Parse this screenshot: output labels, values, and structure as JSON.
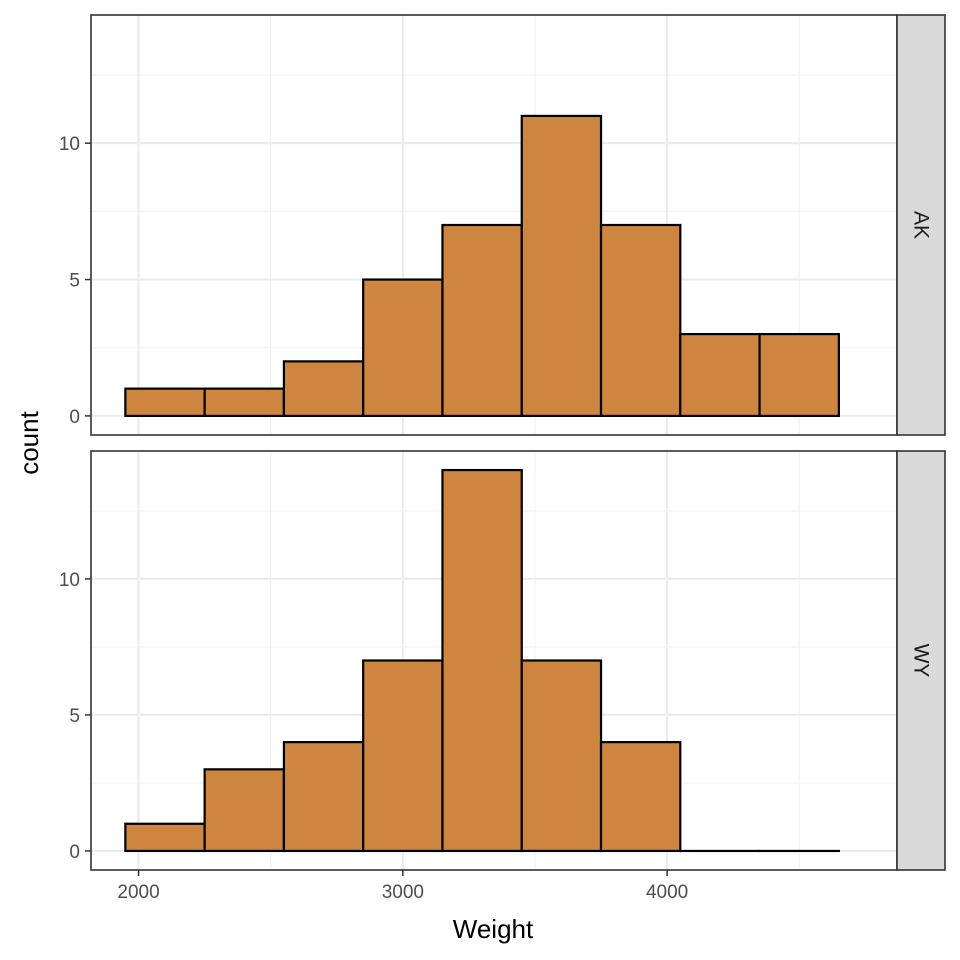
{
  "chart_data": {
    "type": "bar",
    "xlabel": "Weight",
    "ylabel": "count",
    "xlim": [
      1820,
      4870
    ],
    "ylim": [
      -0.7,
      14.7
    ],
    "x_ticks": [
      2000,
      3000,
      4000
    ],
    "x_minor_ticks": [
      1500,
      2500,
      3500,
      4500
    ],
    "y_ticks": [
      0,
      5,
      10
    ],
    "y_minor_ticks": [
      2.5,
      7.5,
      12.5
    ],
    "grid": true,
    "bin_edges": [
      1950,
      2250,
      2550,
      2850,
      3150,
      3450,
      3750,
      4050,
      4350,
      4650
    ],
    "fill_color": "#CD853F",
    "panels": [
      {
        "facet": "AK",
        "counts": [
          1,
          1,
          2,
          5,
          7,
          11,
          7,
          3,
          3
        ]
      },
      {
        "facet": "WY",
        "counts": [
          1,
          3,
          4,
          7,
          14,
          7,
          4,
          0,
          0
        ]
      }
    ]
  }
}
